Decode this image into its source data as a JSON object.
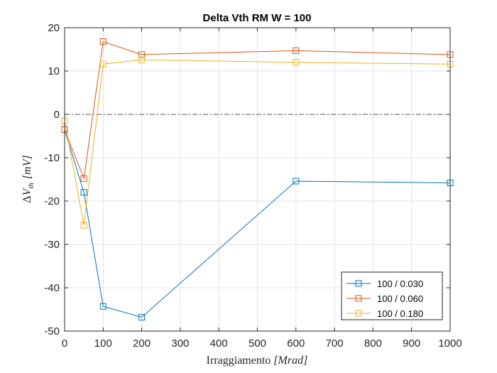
{
  "chart_data": {
    "type": "line",
    "title": "Delta Vth RM W = 100",
    "xlabel": "Irraggiamento [Mrad]",
    "xlabel_parts": {
      "text": "Irraggiamento ",
      "math": "[Mrad]"
    },
    "ylabel": "ΔV_th [mV]",
    "ylabel_parts": {
      "delta": "Δ",
      "var": "V",
      "sub": "th",
      "unit": "[mV]"
    },
    "xlim": [
      0,
      1000
    ],
    "ylim": [
      -50,
      20
    ],
    "xticks": [
      0,
      100,
      200,
      300,
      400,
      500,
      600,
      700,
      800,
      900,
      1000
    ],
    "yticks": [
      -50,
      -40,
      -30,
      -20,
      -10,
      0,
      10,
      20
    ],
    "grid": true,
    "legend_position": "bottom-right",
    "reference_line": {
      "y": 0,
      "style": "dash-dot",
      "color": "#555555"
    },
    "series": [
      {
        "name": "100 / 0.030",
        "color": "#0072BD",
        "marker": "square",
        "x": [
          0,
          50,
          100,
          200,
          600,
          1000
        ],
        "y": [
          -3.5,
          -18,
          -44.3,
          -46.8,
          -15.4,
          -15.8
        ]
      },
      {
        "name": "100 / 0.060",
        "color": "#D95319",
        "marker": "square",
        "x": [
          0,
          50,
          100,
          200,
          600,
          1000
        ],
        "y": [
          -3.5,
          -14.8,
          16.8,
          13.8,
          14.7,
          13.8
        ]
      },
      {
        "name": "100 / 0.180",
        "color": "#EDB120",
        "marker": "square",
        "x": [
          0,
          50,
          100,
          200,
          600,
          1000
        ],
        "y": [
          -1.5,
          -25.6,
          11.6,
          12.6,
          12.0,
          11.6
        ]
      }
    ]
  }
}
